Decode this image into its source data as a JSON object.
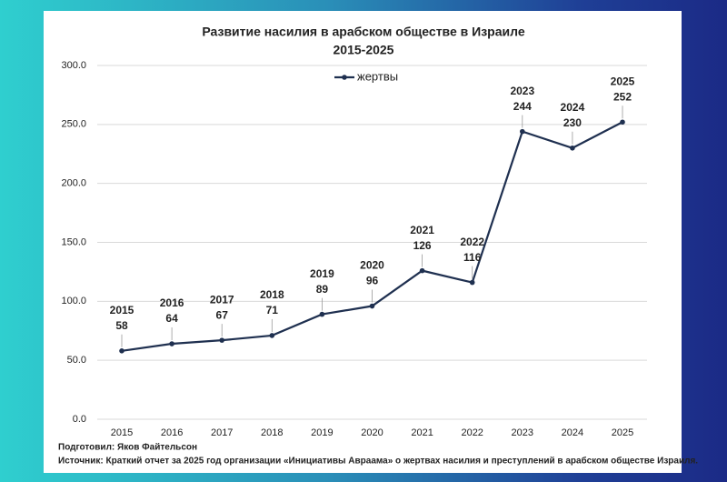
{
  "chart_data": {
    "type": "line",
    "title": "Развитие насилия в арабском обществе в Израиле",
    "subtitle": "2015-2025",
    "categories": [
      "2015",
      "2016",
      "2017",
      "2018",
      "2019",
      "2020",
      "2021",
      "2022",
      "2023",
      "2024",
      "2025"
    ],
    "series": [
      {
        "name": "жертвы",
        "color": "#1f3050",
        "values": [
          58,
          64,
          67,
          71,
          89,
          96,
          126,
          116,
          244,
          230,
          252
        ]
      }
    ],
    "ylim": [
      0,
      300
    ],
    "yticks": [
      {
        "value": 0,
        "label": "0.0"
      },
      {
        "value": 50,
        "label": "50.0"
      },
      {
        "value": 100,
        "label": "100.0"
      },
      {
        "value": 150,
        "label": "150.0"
      },
      {
        "value": 200,
        "label": "200.0"
      },
      {
        "value": 250,
        "label": "250.0"
      },
      {
        "value": 300,
        "label": "300.0"
      }
    ],
    "grid": true,
    "legend": "top",
    "notes": [
      "Подготовил: Яков Файтельсон",
      "Источник: Краткий отчет за 2025 год организации «Инициативы Авраама» о жертвах насилия и преступлений в арабском обществе Израиля."
    ]
  }
}
